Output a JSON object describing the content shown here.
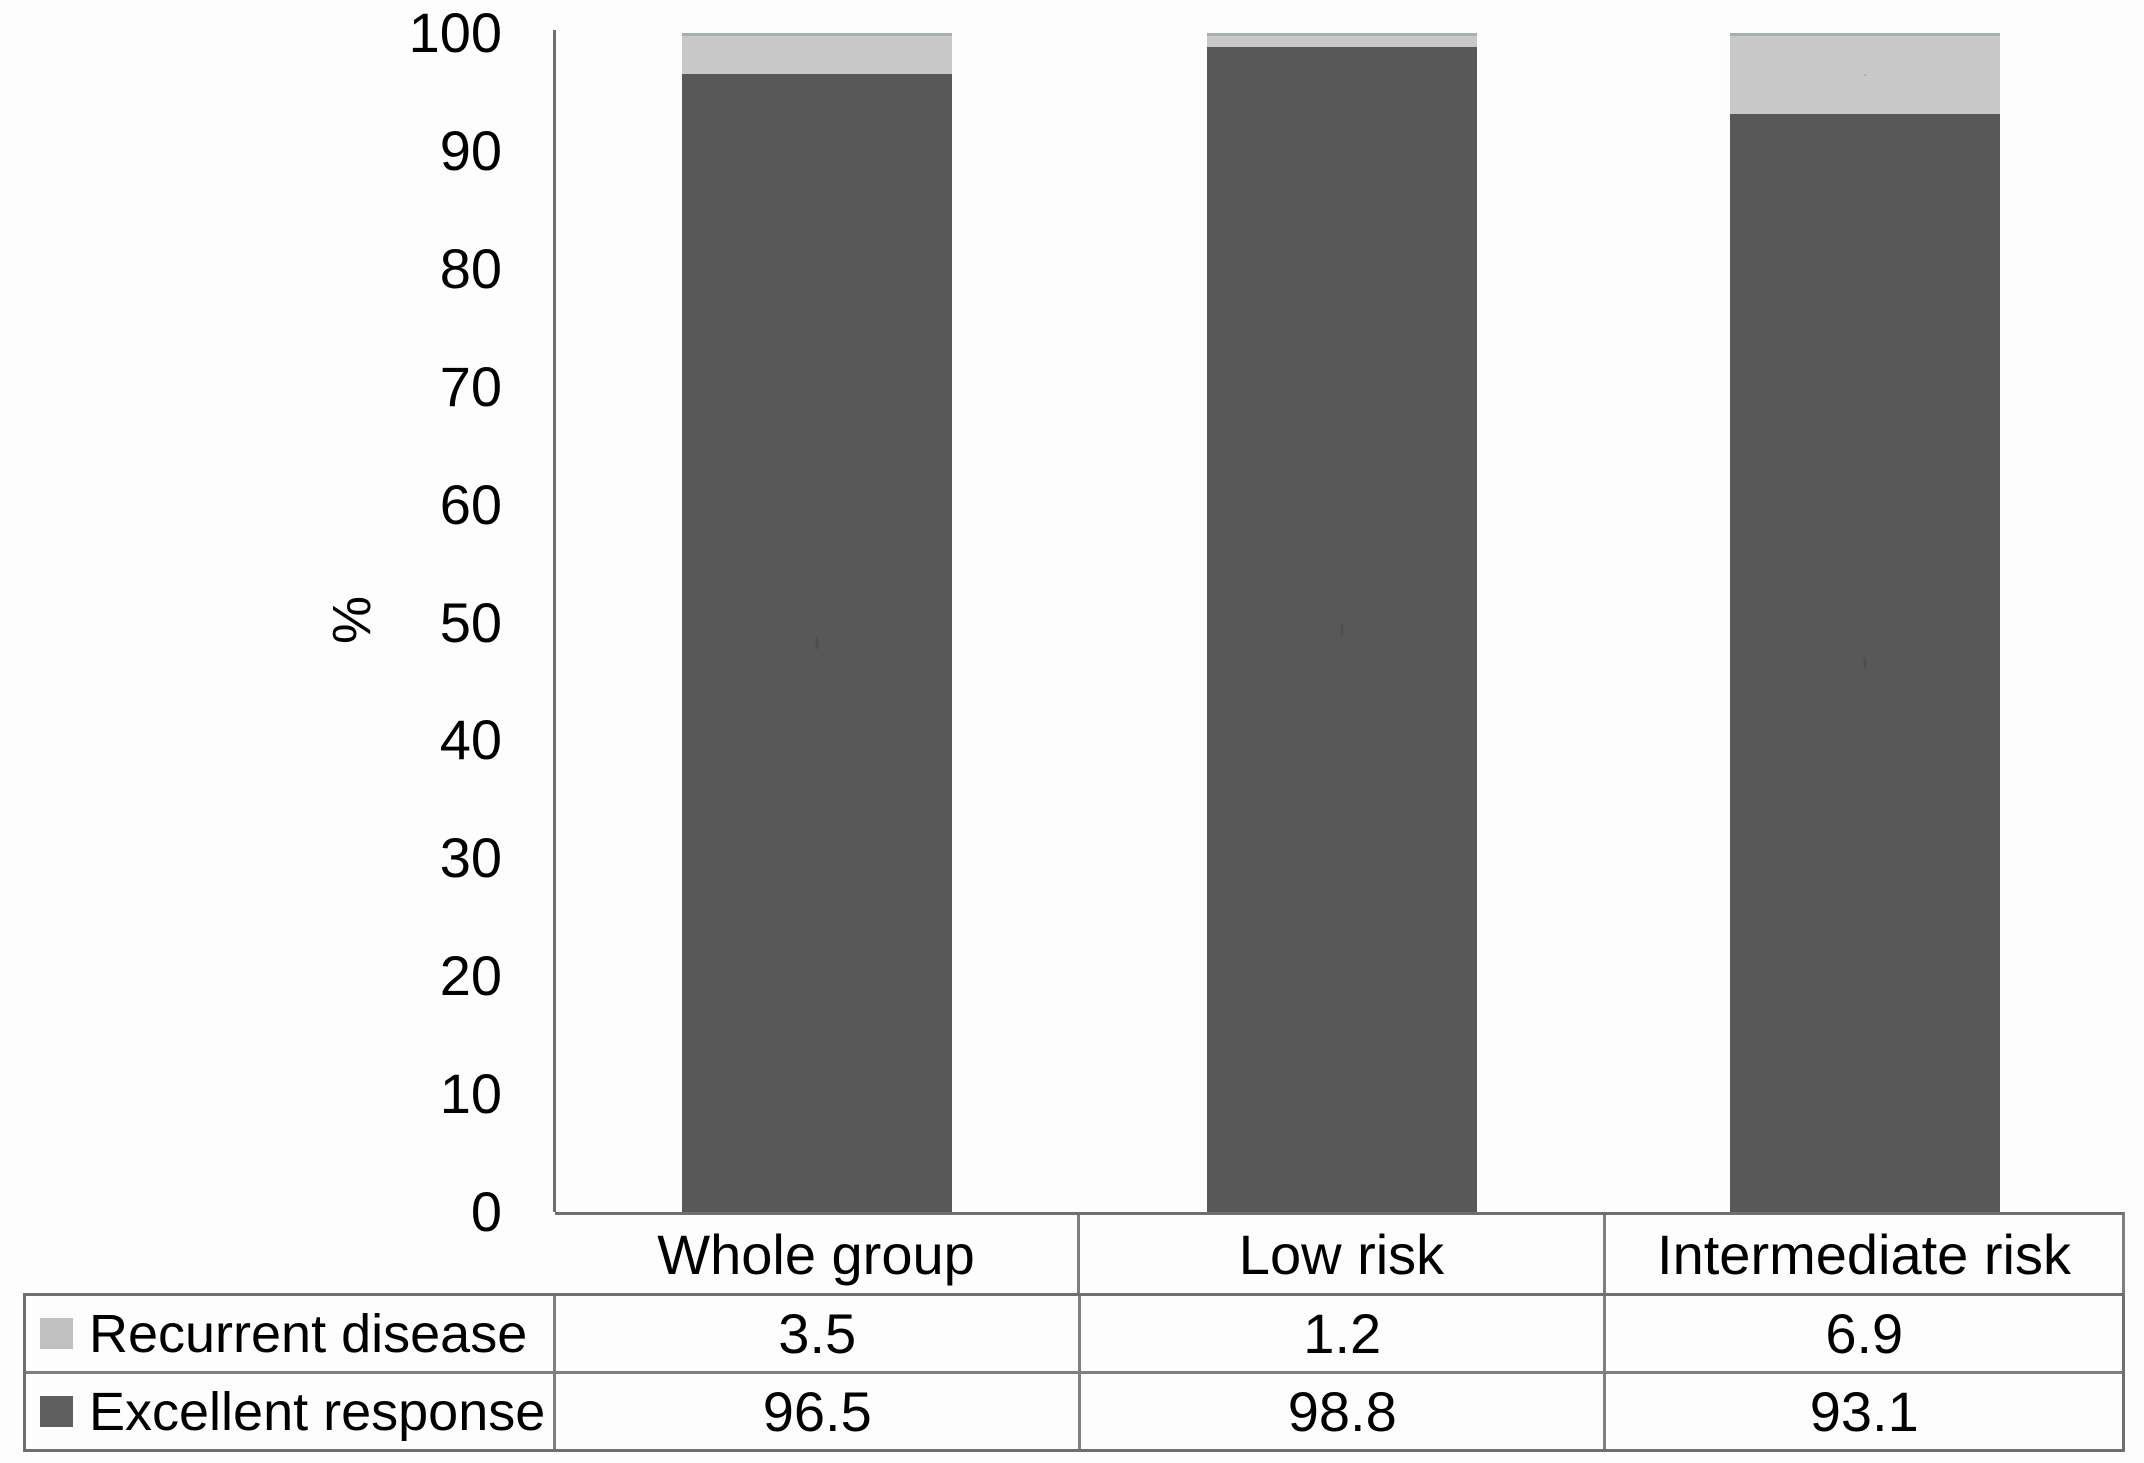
{
  "chart_data": {
    "type": "bar",
    "stacked": true,
    "categories": [
      "Whole group",
      "Low risk",
      "Intermediate risk"
    ],
    "series": [
      {
        "name": "Excellent response",
        "values": [
          96.5,
          98.8,
          93.1
        ],
        "color": "#585858"
      },
      {
        "name": "Recurrent disease",
        "values": [
          3.5,
          1.2,
          6.9
        ],
        "color": "#c8c8c8"
      }
    ],
    "ylabel": "%",
    "ylim": [
      0,
      100
    ],
    "yticks": [
      0,
      10,
      20,
      30,
      40,
      50,
      60,
      70,
      80,
      90,
      100
    ],
    "grid": false,
    "legend_position": "table-bottom-left"
  },
  "table": {
    "header": [
      "Whole group",
      "Low risk",
      "Intermediate risk"
    ],
    "rows": [
      {
        "label": "Recurrent disease",
        "swatch_color": "#c0c0c0",
        "values": [
          "3.5",
          "1.2",
          "6.9"
        ]
      },
      {
        "label": "Excellent response",
        "swatch_color": "#5f5f5f",
        "values": [
          "96.5",
          "98.8",
          "93.1"
        ]
      }
    ]
  },
  "colors": {
    "excellent_response": "#585858",
    "recurrent_disease": "#c8c8c8",
    "axis_line": "#6f6f6f",
    "table_border": "#7f7f7f"
  }
}
